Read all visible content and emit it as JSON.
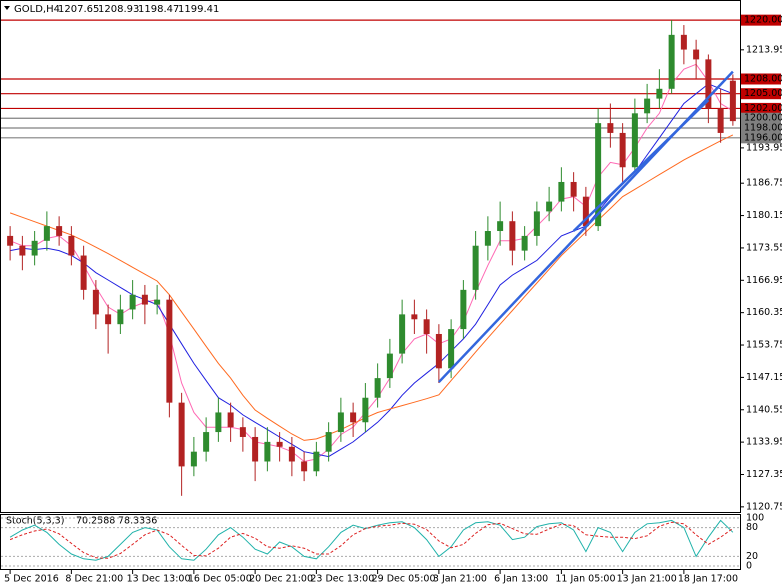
{
  "chart_data": {
    "type": "candlestick",
    "title": "GOLD,H4",
    "categories": [
      "5 Dec 2016",
      null,
      null,
      null,
      null,
      "8 Dec 21:00",
      null,
      null,
      null,
      null,
      "13 Dec 13:00",
      null,
      null,
      null,
      null,
      "16 Dec 05:00",
      null,
      null,
      null,
      null,
      "20 Dec 21:00",
      null,
      null,
      null,
      null,
      "23 Dec 13:00",
      null,
      null,
      null,
      null,
      "29 Dec 05:00",
      null,
      null,
      null,
      null,
      "3 Jan 21:00",
      null,
      null,
      null,
      null,
      "6 Jan 13:00",
      null,
      null,
      null,
      null,
      "11 Jan 05:00",
      null,
      null,
      null,
      null,
      "13 Jan 21:00",
      null,
      null,
      null,
      null,
      "18 Jan 17:00",
      null,
      null,
      null,
      null
    ],
    "open": [
      1176,
      1174,
      1172,
      1175,
      1178,
      1176,
      1172,
      1165,
      1160,
      1158,
      1161,
      1164,
      1162,
      1163,
      1142,
      1129,
      1132,
      1136,
      1140,
      1137,
      1135,
      1130,
      1134,
      1133,
      1130,
      1128,
      1132,
      1136,
      1140,
      1138,
      1143,
      1147,
      1152,
      1160,
      1159,
      1156,
      1149,
      1157,
      1165,
      1174,
      1177,
      1179,
      1173,
      1176,
      1181,
      1183,
      1187,
      1184,
      1178,
      1199,
      1197,
      1190,
      1201,
      1204,
      1206,
      1217,
      1214,
      1212,
      1202,
      1207.65
    ],
    "high": [
      1178,
      1176,
      1177,
      1181,
      1180,
      1178,
      1174,
      1167,
      1162,
      1164,
      1167,
      1166,
      1166,
      1164,
      1144,
      1135,
      1139,
      1143,
      1142,
      1139,
      1137,
      1137,
      1136,
      1135,
      1132,
      1134,
      1138,
      1143,
      1142,
      1146,
      1150,
      1155,
      1163,
      1163,
      1161,
      1158,
      1159,
      1167,
      1177,
      1180,
      1183,
      1181,
      1178,
      1183,
      1186,
      1190,
      1189,
      1186,
      1202,
      1203,
      1199,
      1204,
      1207,
      1210,
      1220,
      1219,
      1216,
      1213,
      1206,
      1208.93
    ],
    "low": [
      1171,
      1169,
      1170,
      1173,
      1174,
      1170,
      1163,
      1157,
      1152,
      1156,
      1159,
      1158,
      1160,
      1139,
      1123,
      1127,
      1130,
      1134,
      1134,
      1132,
      1126,
      1128,
      1130,
      1127,
      1126,
      1127,
      1130,
      1134,
      1135,
      1136,
      1141,
      1145,
      1150,
      1156,
      1152,
      1146,
      1147,
      1155,
      1163,
      1171,
      1174,
      1170,
      1171,
      1174,
      1179,
      1181,
      1181,
      1176,
      1177,
      1194,
      1187,
      1189,
      1199,
      1202,
      1205,
      1211,
      1208,
      1199,
      1195,
      1198.47
    ],
    "close": [
      1174,
      1172,
      1175,
      1178,
      1176,
      1172,
      1165,
      1160,
      1158,
      1161,
      1164,
      1162,
      1163,
      1142,
      1129,
      1132,
      1136,
      1140,
      1137,
      1135,
      1130,
      1134,
      1133,
      1130,
      1128,
      1132,
      1136,
      1140,
      1138,
      1143,
      1147,
      1152,
      1160,
      1159,
      1156,
      1149,
      1157,
      1165,
      1174,
      1177,
      1179,
      1173,
      1176,
      1181,
      1183,
      1187,
      1184,
      1178,
      1199,
      1197,
      1190,
      1201,
      1204,
      1206,
      1217,
      1214,
      1212,
      1202,
      1197,
      1199.41
    ],
    "up_color": "#2e8b2e",
    "down_color": "#b22222",
    "series": [
      {
        "color": "#ff69b4",
        "values": [
          1175,
          1174,
          1174,
          1175.5,
          1176,
          1174,
          1170,
          1165.5,
          1161.5,
          1160,
          1161.5,
          1162.5,
          1163,
          1156,
          1146,
          1140,
          1137,
          1137,
          1137,
          1136.5,
          1134,
          1133.5,
          1133,
          1132,
          1130,
          1130.5,
          1132.5,
          1135.5,
          1137,
          1140,
          1143,
          1147,
          1152,
          1155,
          1156,
          1154,
          1155,
          1158.5,
          1164.5,
          1170,
          1175,
          1175,
          1175.5,
          1178,
          1180.5,
          1183.5,
          1184,
          1182,
          1188,
          1191,
          1190.5,
          1194,
          1198,
          1201,
          1207,
          1210,
          1211,
          1207.5,
          1203,
          1201.5
        ]
      },
      {
        "color": "#2020e0",
        "values": [
          1173,
          1173.5,
          1173.2,
          1173.5,
          1173,
          1172,
          1170.5,
          1168.5,
          1167,
          1165.5,
          1164,
          1163,
          1162,
          1158,
          1154,
          1150,
          1146.5,
          1143,
          1141.5,
          1139.5,
          1138,
          1136.5,
          1135,
          1133.5,
          1132,
          1131.5,
          1131,
          1132.5,
          1134,
          1136,
          1138,
          1140.5,
          1143.5,
          1146,
          1148,
          1150,
          1152.5,
          1155,
          1158,
          1162,
          1166,
          1168,
          1169.5,
          1171,
          1173.5,
          1176,
          1177,
          1178,
          1181,
          1184,
          1186.5,
          1189,
          1192.5,
          1196,
          1199.5,
          1203,
          1205,
          1207,
          1206,
          1205
        ]
      },
      {
        "color": "#ff6a20",
        "values": [
          1180.7,
          1179.8,
          1178.9,
          1178,
          1177.1,
          1176.2,
          1175,
          1173.7,
          1172.4,
          1171,
          1169.6,
          1168.2,
          1166.8,
          1164,
          1160.5,
          1157,
          1153.5,
          1150,
          1147,
          1143.5,
          1140.5,
          1138.8,
          1137.2,
          1135.6,
          1134.3,
          1134.6,
          1135.5,
          1136.5,
          1137.7,
          1138.9,
          1140,
          1140.7,
          1141.4,
          1142.1,
          1142.8,
          1143.6,
          1146.5,
          1149.4,
          1152.3,
          1155.2,
          1158,
          1160.8,
          1163.6,
          1166.4,
          1169.2,
          1172,
          1174.4,
          1176.8,
          1179.2,
          1181.6,
          1184,
          1185.5,
          1187,
          1188.5,
          1190,
          1191.5,
          1192.8,
          1194.1,
          1195.4,
          1196.6
        ]
      }
    ],
    "trendlines": [
      {
        "color": "#3366dd",
        "from": [
          35,
          1146.2
        ],
        "to": [
          59,
          1209.5
        ]
      },
      {
        "color": "#3366dd",
        "from": [
          46,
          1177
        ],
        "to": [
          57,
          1203.7
        ]
      }
    ],
    "levels": [
      {
        "value": 1220,
        "label": "1220.00",
        "color": "#c00000"
      },
      {
        "value": 1208,
        "label": "1208.00",
        "color": "#c00000"
      },
      {
        "value": 1205,
        "label": "1205.00",
        "color": "#c00000"
      },
      {
        "value": 1202,
        "label": "1202.00",
        "color": "#c00000"
      },
      {
        "value": 1200,
        "label": "1200.00",
        "color": "#808080"
      },
      {
        "value": 1198,
        "label": "1198.00",
        "color": "#808080"
      },
      {
        "value": 1196,
        "label": "1196.00",
        "color": "#808080"
      }
    ],
    "ylim": [
      1119.7,
      1223.7
    ],
    "yticks": [
      1213.95,
      1193.95,
      1186.75,
      1180.15,
      1173.55,
      1166.95,
      1160.35,
      1153.75,
      1147.15,
      1140.55,
      1133.95,
      1127.35,
      1120.75
    ],
    "stochastic": {
      "title": "Stoch(5,3,3)",
      "ylim": [
        0,
        100
      ],
      "yticks": [
        100,
        80,
        20,
        0
      ],
      "main": {
        "color": "#20b2aa",
        "values": [
          60,
          75,
          85,
          70,
          45,
          25,
          15,
          12,
          20,
          45,
          70,
          80,
          75,
          40,
          15,
          12,
          35,
          65,
          80,
          60,
          35,
          25,
          50,
          40,
          20,
          15,
          40,
          70,
          85,
          78,
          85,
          90,
          92,
          80,
          55,
          20,
          40,
          75,
          90,
          92,
          85,
          55,
          60,
          82,
          88,
          90,
          75,
          30,
          80,
          70,
          30,
          70,
          88,
          90,
          95,
          80,
          20,
          60,
          95,
          70.2588
        ]
      },
      "signal": {
        "color": "#dd2222",
        "values": [
          55,
          65,
          73,
          77,
          67,
          47,
          28,
          17,
          16,
          26,
          45,
          65,
          75,
          65,
          43,
          22,
          21,
          37,
          60,
          68,
          58,
          40,
          37,
          42,
          37,
          25,
          25,
          42,
          65,
          78,
          83,
          85,
          89,
          87,
          76,
          52,
          38,
          45,
          68,
          86,
          89,
          78,
          67,
          66,
          77,
          87,
          84,
          65,
          62,
          60,
          60,
          57,
          63,
          83,
          91,
          88,
          65,
          45,
          60,
          78.3336
        ]
      }
    }
  }
}
